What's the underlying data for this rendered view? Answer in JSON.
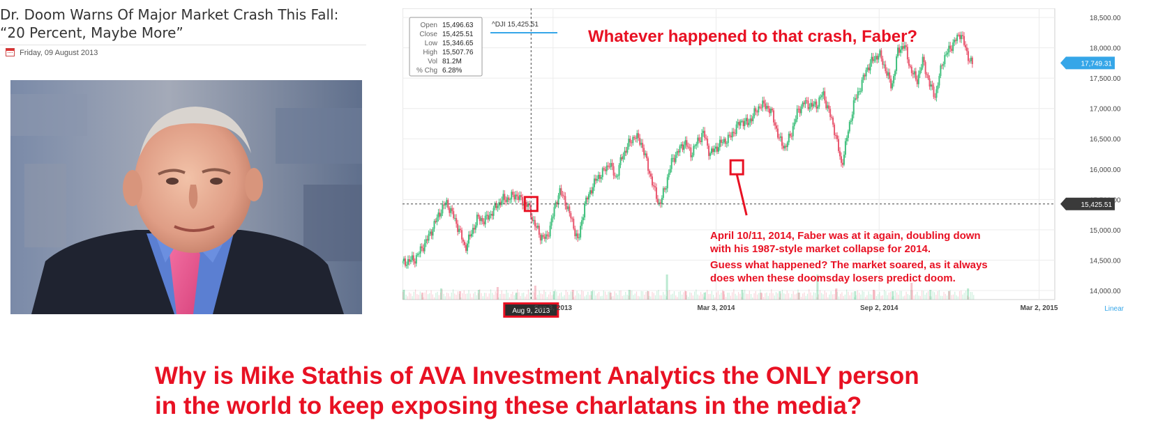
{
  "article": {
    "title_line1": "Dr. Doom Warns Of Major Market Crash This Fall:",
    "title_line2": "“20 Percent, Maybe More”",
    "date": "Friday, 09 August 2013",
    "icons": {
      "date": "calendar-icon"
    }
  },
  "chart_data": {
    "type": "candlestick",
    "symbol_label": "^DJI 15,425.51",
    "ohlc_panel": [
      {
        "label": "Open",
        "value": "15,496.63"
      },
      {
        "label": "Close",
        "value": "15,425.51"
      },
      {
        "label": "Low",
        "value": "15,346.65"
      },
      {
        "label": "High",
        "value": "15,507.76"
      },
      {
        "label": "Vol",
        "value": "81.2M"
      },
      {
        "label": "% Chg",
        "value": "6.28%"
      }
    ],
    "y_ticks": [
      "14,000.00",
      "14,500.00",
      "15,000.00",
      "15,500.00",
      "16,000.00",
      "16,500.00",
      "17,000.00",
      "17,500.00",
      "18,000.00",
      "18,500.00"
    ],
    "y_tick_values": [
      14000,
      14500,
      15000,
      15500,
      16000,
      16500,
      17000,
      17500,
      18000,
      18500
    ],
    "x_ticks": [
      {
        "label": "Sep 3, 2013",
        "t": 24
      },
      {
        "label": "Mar 3, 2014",
        "t": 50
      },
      {
        "label": "Sep 2, 2014",
        "t": 76
      },
      {
        "label": "Mar 2, 2015",
        "t": 101.5
      }
    ],
    "x_range": [
      0,
      104
    ],
    "y_range": [
      13850,
      18650
    ],
    "scale_label": "Linear",
    "price_tags": [
      {
        "label": "17,749.31",
        "value": 17749.31,
        "color": "#35a6e8"
      },
      {
        "label": "15,425.51",
        "value": 15425.51,
        "color": "#3a3a3a"
      }
    ],
    "crosshair": {
      "t": 20.5,
      "value": 15425.51,
      "label": "Aug 9, 2013"
    },
    "path": [
      [
        0,
        14450
      ],
      [
        2,
        14520
      ],
      [
        4,
        14850
      ],
      [
        6,
        15300
      ],
      [
        7,
        15450
      ],
      [
        8,
        15250
      ],
      [
        9,
        15000
      ],
      [
        10,
        14700
      ],
      [
        11,
        14950
      ],
      [
        12,
        15200
      ],
      [
        13,
        15150
      ],
      [
        14,
        15250
      ],
      [
        15,
        15400
      ],
      [
        16,
        15500
      ],
      [
        17,
        15520
      ],
      [
        18,
        15580
      ],
      [
        19,
        15480
      ],
      [
        20,
        15400
      ],
      [
        21,
        15100
      ],
      [
        22,
        14900
      ],
      [
        23,
        14850
      ],
      [
        24,
        15250
      ],
      [
        25,
        15650
      ],
      [
        26,
        15450
      ],
      [
        27,
        15150
      ],
      [
        28,
        14800
      ],
      [
        29,
        15400
      ],
      [
        30,
        15650
      ],
      [
        31,
        15850
      ],
      [
        32,
        15950
      ],
      [
        33,
        16100
      ],
      [
        34,
        15850
      ],
      [
        35,
        16200
      ],
      [
        36,
        16400
      ],
      [
        37,
        16550
      ],
      [
        38,
        16450
      ],
      [
        39,
        16100
      ],
      [
        40,
        15700
      ],
      [
        41,
        15400
      ],
      [
        42,
        15750
      ],
      [
        43,
        16150
      ],
      [
        44,
        16300
      ],
      [
        45,
        16450
      ],
      [
        46,
        16250
      ],
      [
        47,
        16450
      ],
      [
        48,
        16600
      ],
      [
        49,
        16250
      ],
      [
        50,
        16350
      ],
      [
        51,
        16450
      ],
      [
        52,
        16500
      ],
      [
        53,
        16650
      ],
      [
        54,
        16800
      ],
      [
        55,
        16750
      ],
      [
        56,
        16900
      ],
      [
        57,
        17050
      ],
      [
        58,
        17050
      ],
      [
        59,
        16900
      ],
      [
        60,
        16500
      ],
      [
        61,
        16350
      ],
      [
        62,
        16600
      ],
      [
        63,
        16950
      ],
      [
        64,
        17100
      ],
      [
        65,
        17050
      ],
      [
        66,
        17050
      ],
      [
        67,
        17250
      ],
      [
        68,
        16950
      ],
      [
        69,
        16600
      ],
      [
        70,
        16050
      ],
      [
        71,
        16600
      ],
      [
        72,
        17100
      ],
      [
        73,
        17350
      ],
      [
        74,
        17650
      ],
      [
        75,
        17800
      ],
      [
        76,
        17900
      ],
      [
        77,
        17650
      ],
      [
        78,
        17350
      ],
      [
        79,
        17950
      ],
      [
        80,
        18050
      ],
      [
        81,
        17650
      ],
      [
        82,
        17450
      ],
      [
        83,
        17800
      ],
      [
        84,
        17400
      ],
      [
        85,
        17200
      ],
      [
        86,
        17750
      ],
      [
        87,
        17950
      ],
      [
        88,
        18100
      ],
      [
        89,
        18250
      ],
      [
        90,
        17900
      ],
      [
        91,
        17700
      ]
    ],
    "volume": [
      [
        0,
        0.35
      ],
      [
        3,
        0.25
      ],
      [
        6,
        0.4
      ],
      [
        9,
        0.3
      ],
      [
        12,
        0.35
      ],
      [
        15,
        0.45
      ],
      [
        18,
        0.25
      ],
      [
        21,
        0.5
      ],
      [
        24,
        0.3
      ],
      [
        27,
        0.35
      ],
      [
        30,
        0.3
      ],
      [
        33,
        0.25
      ],
      [
        36,
        0.35
      ],
      [
        39,
        0.3
      ],
      [
        42,
        0.9
      ],
      [
        45,
        0.3
      ],
      [
        48,
        0.25
      ],
      [
        51,
        0.3
      ],
      [
        54,
        0.35
      ],
      [
        57,
        0.25
      ],
      [
        60,
        0.3
      ],
      [
        63,
        0.25
      ],
      [
        66,
        0.9
      ],
      [
        69,
        0.4
      ],
      [
        72,
        0.3
      ],
      [
        75,
        0.35
      ],
      [
        78,
        0.3
      ],
      [
        81,
        0.6
      ],
      [
        84,
        0.35
      ],
      [
        87,
        0.3
      ],
      [
        90,
        0.4
      ]
    ],
    "markers": [
      {
        "t": 20.5,
        "value": 15425.51
      },
      {
        "t": 53.3,
        "value": 16030
      }
    ],
    "annotations": {
      "headline": "Whatever happened to that crash, Faber?",
      "note_line1": "April 10/11, 2014, Faber was at it again, doubling down",
      "note_line2": "with his 1987-style market collapse for 2014.",
      "note_line3": "Guess what happened? The market soared, as it always",
      "note_line4": "does when these doomsday losers predict doom."
    },
    "colors": {
      "up": "#3dbf7b",
      "down": "#e8566e",
      "accent": "#e81123",
      "price_tag": "#35a6e8",
      "crosshair_tag": "#3a3a3a"
    }
  },
  "bottom": {
    "line1": "Why is Mike Stathis of AVA Investment Analytics the ONLY person",
    "line2": "in the world to keep exposing these charlatans in the media?"
  }
}
